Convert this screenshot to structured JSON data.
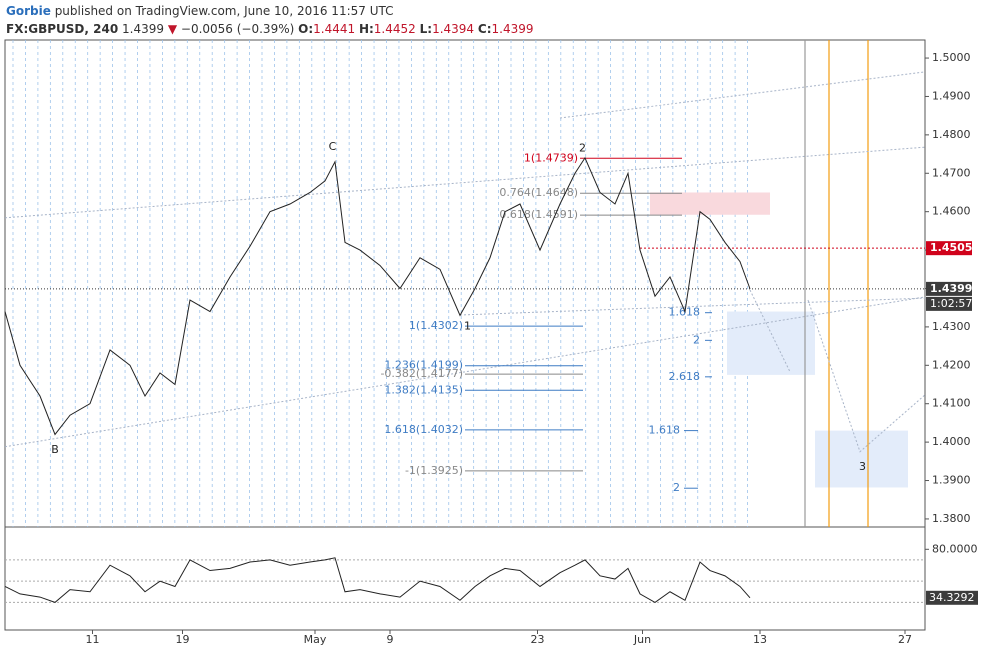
{
  "header": {
    "author": "Gorbie",
    "published": "published on TradingView.com, June 10, 2016 11:57 UTC",
    "symbol": "FX:GBPUSD, 240",
    "price": "1.4399",
    "change": "−0.0056 (−0.39%)",
    "ohlc": [
      {
        "label": "O:",
        "value": "1.4441"
      },
      {
        "label": "H:",
        "value": "1.4452"
      },
      {
        "label": "L:",
        "value": "1.4394"
      },
      {
        "label": "C:",
        "value": "1.4399"
      }
    ]
  },
  "chart_data": [
    {
      "type": "line",
      "color": "#222222",
      "x": [
        0,
        6,
        14,
        20,
        26,
        34,
        42,
        50,
        56,
        62,
        68,
        74,
        82,
        90,
        98,
        106,
        114,
        122,
        128,
        132,
        136,
        142,
        150,
        158,
        166,
        174,
        182,
        188,
        194,
        200,
        206,
        214,
        222,
        228,
        232,
        238,
        244,
        249.2,
        254,
        260,
        266,
        272,
        278,
        282,
        288,
        294,
        298
      ],
      "values": [
        1.434,
        1.42,
        1.412,
        1.402,
        1.407,
        1.41,
        1.424,
        1.42,
        1.412,
        1.418,
        1.415,
        1.437,
        1.434,
        1.443,
        1.451,
        1.46,
        1.462,
        1.465,
        1.468,
        1.473,
        1.452,
        1.45,
        1.446,
        1.44,
        1.448,
        1.445,
        1.433,
        1.44,
        1.448,
        1.46,
        1.462,
        1.45,
        1.462,
        1.47,
        1.474,
        1.465,
        1.462,
        1.47,
        1.45,
        1.438,
        1.443,
        1.434,
        1.46,
        1.458,
        1.452,
        1.447,
        1.4399
      ],
      "xlim": [
        0,
        368
      ],
      "xticks": [
        {
          "value": 35,
          "label": "11"
        },
        {
          "value": 71,
          "label": "19"
        },
        {
          "value": 124,
          "label": "May"
        },
        {
          "value": 154,
          "label": "9"
        },
        {
          "value": 213,
          "label": "23"
        },
        {
          "value": 255,
          "label": "Jun"
        },
        {
          "value": 302,
          "label": "13"
        },
        {
          "value": 360,
          "label": "27"
        }
      ],
      "ylim": [
        1.3779,
        1.5047
      ],
      "yticks": [
        {
          "value": 1.38,
          "label": "1.3800"
        },
        {
          "value": 1.39,
          "label": "1.3900"
        },
        {
          "value": 1.4,
          "label": "1.4000"
        },
        {
          "value": 1.41,
          "label": "1.4100"
        },
        {
          "value": 1.42,
          "label": "1.4200"
        },
        {
          "value": 1.43,
          "label": "1.4300"
        },
        {
          "value": 1.44,
          "label": "1.4400"
        },
        {
          "value": 1.45,
          "label": "1.4500"
        },
        {
          "value": 1.46,
          "label": "1.4600"
        },
        {
          "value": 1.47,
          "label": "1.4700"
        },
        {
          "value": 1.48,
          "label": "1.4800"
        },
        {
          "value": 1.49,
          "label": "1.4900"
        },
        {
          "value": 1.5,
          "label": "1.5000"
        }
      ],
      "level": 1.4505,
      "level_color": "#d0021b",
      "countdown": "1:02:57",
      "fib_levels": [
        {
          "label": "1(1.4739)",
          "value": 1.4739,
          "color": "#d0021b"
        },
        {
          "label": "0.764(1.4648)",
          "value": 1.4648,
          "color": "#888888"
        },
        {
          "label": "0.618(1.4591)",
          "value": 1.4591,
          "color": "#888888"
        },
        {
          "label": "1(1.4302)",
          "value": 1.4302,
          "color": "#3f7cc4"
        },
        {
          "label": "1.236(1.4199)",
          "value": 1.4199,
          "color": "#3f7cc4"
        },
        {
          "label": "-0.382(1.4177)",
          "value": 1.4177,
          "color": "#888888"
        },
        {
          "label": "1.382(1.4135)",
          "value": 1.4135,
          "color": "#3f7cc4"
        },
        {
          "label": "1.618(1.4032)",
          "value": 1.4032,
          "color": "#3f7cc4"
        },
        {
          "label": "-1(1.3925)",
          "value": 1.3925,
          "color": "#888888"
        },
        {
          "label": "1.618",
          "value": 1.4337,
          "color": "#3f7cc4"
        },
        {
          "label": "2",
          "value": 1.4265,
          "color": "#3f7cc4"
        },
        {
          "label": "2.618",
          "value": 1.417,
          "color": "#3f7cc4"
        },
        {
          "label": "1.618",
          "value": 1.403,
          "color": "#3f7cc4"
        },
        {
          "label": "2",
          "value": 1.388,
          "color": "#3f7cc4"
        }
      ],
      "wave_labels": [
        {
          "label": "C",
          "x": 131,
          "value": 1.4768
        },
        {
          "label": "B",
          "x": 20,
          "value": 1.398
        },
        {
          "label": "2",
          "x": 231,
          "value": 1.4765
        },
        {
          "label": "1",
          "x": 185,
          "value": 1.4301
        },
        {
          "label": "3",
          "x": 343,
          "value": 1.3935
        }
      ],
      "zones": [
        {
          "x": [
            258,
            306
          ],
          "values": [
            1.4592,
            1.465
          ],
          "color": "#f9d9dd"
        },
        {
          "x": [
            288.8,
            324
          ],
          "values": [
            1.4175,
            1.434
          ],
          "color": "#e3ecfa"
        },
        {
          "x": [
            324,
            361.2
          ],
          "values": [
            1.3882,
            1.403
          ],
          "color": "#e3ecfa"
        }
      ],
      "vlines": [
        {
          "x": 320,
          "color": "#999999"
        },
        {
          "x": 329.6,
          "color": "#f39c12"
        },
        {
          "x": 345.2,
          "color": "#f39c12"
        }
      ],
      "trendlines": [
        {
          "x": [
            0,
            368
          ],
          "values": [
            1.4584,
            1.4768
          ]
        },
        {
          "x": [
            0,
            368
          ],
          "values": [
            1.3988,
            1.4378
          ]
        },
        {
          "x": [
            222,
            368
          ],
          "values": [
            1.4844,
            1.4964
          ]
        },
        {
          "x": [
            182,
            368
          ],
          "values": [
            1.4331,
            1.4375
          ]
        },
        {
          "x": [
            298,
            314
          ],
          "values": [
            1.4396,
            1.4183
          ]
        },
        {
          "x": [
            321.2,
            342,
            368
          ],
          "values": [
            1.437,
            1.3975,
            1.4123
          ]
        }
      ]
    },
    {
      "type": "line",
      "color": "#222222",
      "values": [
        45,
        38,
        35,
        30,
        42,
        40,
        65,
        55,
        40,
        50,
        45,
        70,
        60,
        62,
        68,
        70,
        65,
        68,
        70,
        72,
        40,
        42,
        38,
        35,
        50,
        45,
        32,
        45,
        55,
        62,
        60,
        45,
        58,
        65,
        70,
        55,
        52,
        62,
        38,
        30,
        40,
        32,
        68,
        60,
        55,
        45,
        34.3292
      ],
      "ylim": [
        4,
        101
      ],
      "yticks": [
        {
          "value": 80,
          "label": "80.0000"
        }
      ],
      "levels": [
        70,
        50,
        30
      ]
    }
  ]
}
